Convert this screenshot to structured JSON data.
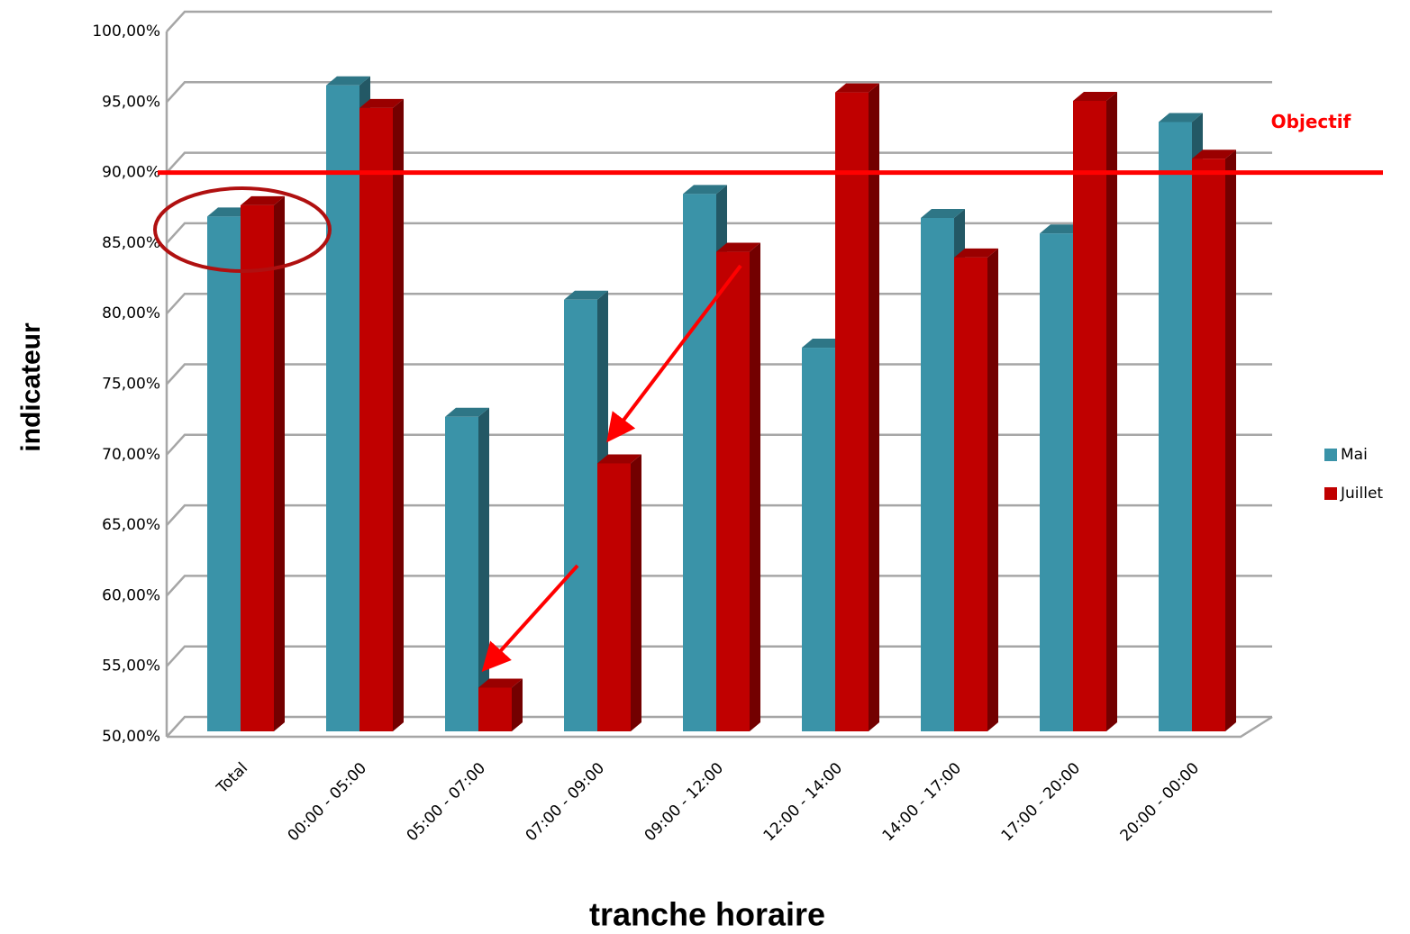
{
  "chart_data": {
    "type": "bar3d",
    "x_label": "tranche horaire",
    "y_label": "indicateur",
    "categories": [
      "Total",
      "00:00 - 05:00",
      "05:00 - 07:00",
      "07:00 - 09:00",
      "09:00 - 12:00",
      "12:00 - 14:00",
      "14:00 - 17:00",
      "17:00 - 20:00",
      "20:00 - 00:00"
    ],
    "series": [
      {
        "name": "Mai",
        "color": "#3a93a8",
        "values": [
          86.5,
          95.8,
          72.3,
          80.6,
          88.1,
          77.2,
          86.4,
          85.3,
          93.2
        ]
      },
      {
        "name": "Juillet",
        "color": "#c00000",
        "values": [
          87.3,
          94.2,
          53.1,
          69.0,
          84.0,
          95.3,
          83.6,
          94.7,
          90.6
        ]
      }
    ],
    "ylim": [
      50,
      100
    ],
    "yticks": [
      {
        "value": 50,
        "label": "50,00%"
      },
      {
        "value": 55,
        "label": "55,00%"
      },
      {
        "value": 60,
        "label": "60,00%"
      },
      {
        "value": 65,
        "label": "65,00%"
      },
      {
        "value": 70,
        "label": "70,00%"
      },
      {
        "value": 75,
        "label": "75,00%"
      },
      {
        "value": 80,
        "label": "80,00%"
      },
      {
        "value": 85,
        "label": "85,00%"
      },
      {
        "value": 90,
        "label": "90,00%"
      },
      {
        "value": 95,
        "label": "95,00%"
      },
      {
        "value": 100,
        "label": "100,00%"
      }
    ],
    "grid": true,
    "legend": "right",
    "objective": {
      "label": "Objectif",
      "value": 90,
      "color": "#ff0000"
    }
  }
}
